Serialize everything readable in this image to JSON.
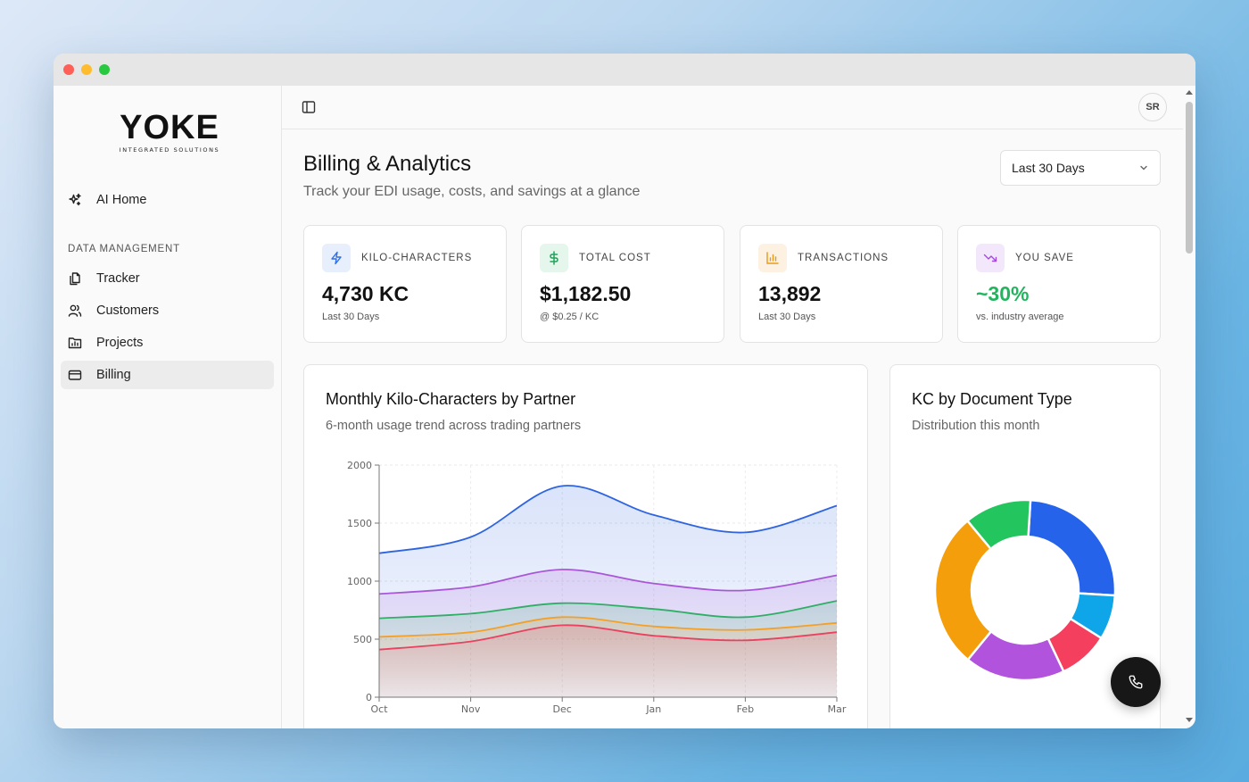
{
  "brand": {
    "name": "YOKE",
    "tagline": "INTEGRATED SOLUTIONS"
  },
  "sidebar": {
    "home": {
      "label": "AI Home",
      "icon": "sparkles-icon"
    },
    "section_label": "DATA MANAGEMENT",
    "items": [
      {
        "label": "Tracker",
        "icon": "copy-icon"
      },
      {
        "label": "Customers",
        "icon": "users-icon"
      },
      {
        "label": "Projects",
        "icon": "folder-chart-icon"
      },
      {
        "label": "Billing",
        "icon": "credit-card-icon",
        "active": true
      }
    ]
  },
  "header": {
    "toggle_icon": "sidebar-toggle-icon",
    "avatar_initials": "SR"
  },
  "page": {
    "title": "Billing & Analytics",
    "subtitle": "Track your EDI usage, costs, and savings at a glance",
    "range_select": {
      "value": "Last 30 Days"
    }
  },
  "stats": [
    {
      "label": "KILO-CHARACTERS",
      "value": "4,730 KC",
      "note": "Last 30 Days",
      "icon": "zap-icon",
      "color": "#2f6fe4",
      "bg": "#e7effd"
    },
    {
      "label": "TOTAL COST",
      "value": "$1,182.50",
      "note": "@ $0.25 / KC",
      "icon": "dollar-icon",
      "color": "#22a35a",
      "bg": "#e5f6ec"
    },
    {
      "label": "TRANSACTIONS",
      "value": "13,892",
      "note": "Last 30 Days",
      "icon": "bar-chart-icon",
      "color": "#e69a1a",
      "bg": "#fdf1e2"
    },
    {
      "label": "YOU SAVE",
      "value": "~30%",
      "note": "vs. industry average",
      "icon": "trending-down-icon",
      "color": "#a24bd6",
      "bg": "#f3e8fb",
      "value_color": "#22b45e"
    }
  ],
  "cards": {
    "partners": {
      "title": "Monthly Kilo-Characters by Partner",
      "subtitle": "6-month usage trend across trading partners"
    },
    "doc_types": {
      "title": "KC by Document Type",
      "subtitle": "Distribution this month"
    }
  },
  "chart_data": [
    {
      "type": "area",
      "categories": [
        "Oct",
        "Nov",
        "Dec",
        "Jan",
        "Feb",
        "Mar"
      ],
      "ylim": [
        0,
        2000
      ],
      "yticks": [
        0,
        500,
        1000,
        1500,
        2000
      ],
      "grid": true,
      "series": [
        {
          "values": [
            1240,
            1380,
            1820,
            1570,
            1420,
            1650
          ],
          "color": "#2f64e0"
        },
        {
          "values": [
            890,
            950,
            1100,
            980,
            920,
            1050
          ],
          "color": "#a957d8"
        },
        {
          "values": [
            680,
            720,
            810,
            760,
            690,
            830
          ],
          "color": "#2fae66"
        },
        {
          "values": [
            520,
            560,
            690,
            610,
            580,
            640
          ],
          "color": "#f2a02a"
        },
        {
          "values": [
            410,
            480,
            620,
            530,
            490,
            560
          ],
          "color": "#e9415f"
        }
      ]
    },
    {
      "type": "pie",
      "values": [
        25,
        8,
        9,
        18,
        28,
        12
      ],
      "colors": [
        "#2563eb",
        "#0ea5e9",
        "#f43f5e",
        "#b153dc",
        "#f59e0b",
        "#22c55e"
      ]
    }
  ],
  "fab": {
    "icon": "phone-icon"
  }
}
